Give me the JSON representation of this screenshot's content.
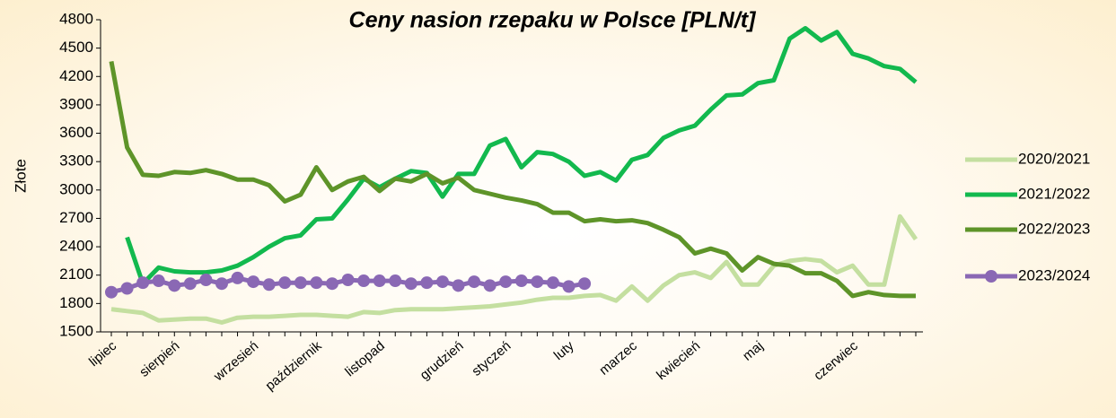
{
  "chart_data": {
    "type": "line",
    "title": "Ceny nasion rzepaku w Polsce [PLN/t]",
    "y_label": "Złote",
    "categories": [
      "lipiec",
      null,
      null,
      null,
      "sierpień",
      null,
      null,
      null,
      null,
      "wrzesień",
      null,
      null,
      null,
      "październik",
      null,
      null,
      null,
      "listopad",
      null,
      null,
      null,
      null,
      "grudzień",
      null,
      null,
      "styczeń",
      null,
      null,
      null,
      "luty",
      null,
      null,
      null,
      "marzec",
      null,
      null,
      null,
      "kwiecień",
      null,
      null,
      null,
      "maj",
      null,
      null,
      null,
      null,
      null,
      "czerwiec",
      null,
      null,
      null,
      null
    ],
    "series": [
      {
        "name": "2020/2021",
        "color": "#c4dfa0",
        "marker": false,
        "values": [
          1740,
          1720,
          1700,
          1620,
          1630,
          1640,
          1640,
          1600,
          1650,
          1660,
          1660,
          1670,
          1680,
          1680,
          1670,
          1660,
          1710,
          1700,
          1730,
          1740,
          1740,
          1740,
          1750,
          1760,
          1770,
          1790,
          1810,
          1840,
          1860,
          1860,
          1880,
          1890,
          1830,
          1980,
          1830,
          1990,
          2100,
          2130,
          2070,
          2240,
          2000,
          2000,
          2200,
          2250,
          2270,
          2250,
          2130,
          2200,
          2000,
          2000,
          2720,
          2480
        ]
      },
      {
        "name": "2021/2022",
        "color": "#12b94e",
        "marker": false,
        "values": [
          null,
          2500,
          2010,
          2180,
          2140,
          2130,
          2130,
          2150,
          2200,
          2290,
          2400,
          2490,
          2520,
          2690,
          2700,
          2900,
          3120,
          3030,
          3120,
          3200,
          3180,
          2930,
          3170,
          3170,
          3470,
          3540,
          3240,
          3400,
          3380,
          3300,
          3150,
          3190,
          3100,
          3320,
          3370,
          3550,
          3630,
          3680,
          3850,
          4000,
          4010,
          4130,
          4160,
          4600,
          4710,
          4580,
          4670,
          4440,
          4390,
          4310,
          4280,
          4140
        ]
      },
      {
        "name": "2022/2023",
        "color": "#5e9429",
        "marker": false,
        "values": [
          4360,
          3450,
          3160,
          3150,
          3190,
          3180,
          3210,
          3170,
          3110,
          3110,
          3050,
          2880,
          2950,
          3240,
          3000,
          3090,
          3140,
          2990,
          3120,
          3090,
          3170,
          3070,
          3130,
          3000,
          2960,
          2920,
          2890,
          2850,
          2760,
          2760,
          2670,
          2690,
          2670,
          2680,
          2650,
          2580,
          2500,
          2330,
          2380,
          2330,
          2150,
          2290,
          2220,
          2200,
          2120,
          2120,
          2040,
          1880,
          1920,
          1890,
          1880,
          1880
        ]
      },
      {
        "name": "2023/2024",
        "color": "#8a68b4",
        "marker": true,
        "values": [
          1920,
          1960,
          2020,
          2040,
          1990,
          2010,
          2050,
          2010,
          2070,
          2030,
          2000,
          2020,
          2020,
          2020,
          2010,
          2050,
          2040,
          2040,
          2040,
          2010,
          2020,
          2030,
          1990,
          2030,
          1990,
          2030,
          2040,
          2030,
          2020,
          1980,
          2010,
          null,
          null,
          null,
          null,
          null,
          null,
          null,
          null,
          null,
          null,
          null,
          null,
          null,
          null,
          null,
          null,
          null,
          null,
          null,
          null,
          null
        ]
      }
    ],
    "ylim": [
      1500,
      4800
    ],
    "yticks": [
      1500,
      1800,
      2100,
      2400,
      2700,
      3000,
      3300,
      3600,
      3900,
      4200,
      4500,
      4800
    ],
    "grid": false,
    "legend": "right"
  }
}
